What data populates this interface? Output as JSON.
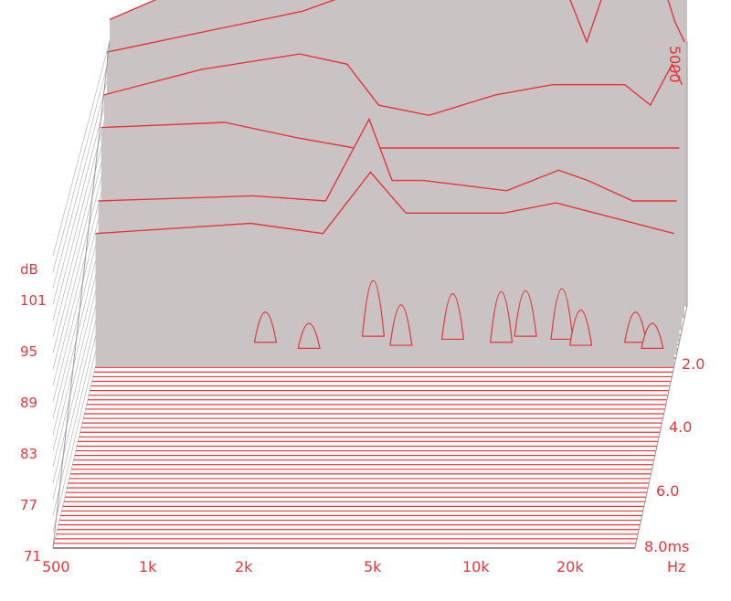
{
  "chart_data": {
    "type": "waterfall",
    "title": "",
    "z_unit": "dB",
    "z_ticks": [
      "101",
      "95",
      "89",
      "83",
      "77",
      "71"
    ],
    "x_unit": "Hz",
    "x_ticks": [
      "500",
      "1k",
      "2k",
      "5k",
      "10k",
      "20k"
    ],
    "x_range_hz": [
      500,
      30000
    ],
    "y_unit": "ms",
    "y_ticks": [
      "2.0",
      "4.0",
      "6.0",
      "8.0ms"
    ],
    "y_range_ms": [
      0,
      8
    ],
    "top_freq_label": "5000",
    "slice_count": 30,
    "slices": [
      {
        "t_ms": 0.0,
        "db": [
          [
            500,
            99
          ],
          [
            700,
            101
          ],
          [
            1000,
            102
          ],
          [
            1500,
            104
          ],
          [
            2000,
            106
          ],
          [
            3000,
            107.5
          ],
          [
            5000,
            108
          ],
          [
            7000,
            108.5
          ],
          [
            10000,
            108.8
          ],
          [
            15000,
            109
          ],
          [
            20000,
            109.2
          ],
          [
            25000,
            109
          ],
          [
            28000,
            105
          ],
          [
            30000,
            102
          ]
        ]
      },
      {
        "t_ms": 0.4,
        "db": [
          [
            500,
            97
          ],
          [
            1000,
            99
          ],
          [
            2000,
            101
          ],
          [
            3000,
            103
          ],
          [
            5000,
            104
          ],
          [
            8000,
            104.5
          ],
          [
            10000,
            104
          ],
          [
            13000,
            103
          ],
          [
            15000,
            98
          ],
          [
            17000,
            103
          ],
          [
            20000,
            105
          ],
          [
            25000,
            105
          ],
          [
            28000,
            100
          ],
          [
            30000,
            98
          ]
        ]
      },
      {
        "t_ms": 0.8,
        "db": [
          [
            500,
            94
          ],
          [
            1000,
            96.5
          ],
          [
            2000,
            98
          ],
          [
            2800,
            97
          ],
          [
            3500,
            93
          ],
          [
            5000,
            92
          ],
          [
            8000,
            94
          ],
          [
            12000,
            95
          ],
          [
            20000,
            95
          ],
          [
            24000,
            93
          ],
          [
            28000,
            97
          ],
          [
            30000,
            95
          ]
        ]
      },
      {
        "t_ms": 1.2,
        "db": [
          [
            500,
            92
          ],
          [
            1200,
            92.5
          ],
          [
            2000,
            91
          ],
          [
            3000,
            90
          ],
          [
            5000,
            90
          ],
          [
            10000,
            90
          ],
          [
            20000,
            90
          ],
          [
            30000,
            90
          ]
        ]
      },
      {
        "t_ms": 1.6,
        "db": [
          [
            500,
            86
          ],
          [
            1500,
            86.5
          ],
          [
            2500,
            86
          ],
          [
            3400,
            94
          ],
          [
            4000,
            88
          ],
          [
            5000,
            88
          ],
          [
            9000,
            87
          ],
          [
            13000,
            89
          ],
          [
            16000,
            88
          ],
          [
            22000,
            86
          ],
          [
            30000,
            86
          ]
        ]
      },
      {
        "t_ms": 2.0,
        "db": [
          [
            500,
            84
          ],
          [
            1500,
            85
          ],
          [
            2500,
            84
          ],
          [
            3500,
            90
          ],
          [
            4500,
            86
          ],
          [
            9000,
            86
          ],
          [
            13000,
            87
          ],
          [
            30000,
            84
          ]
        ]
      }
    ]
  }
}
